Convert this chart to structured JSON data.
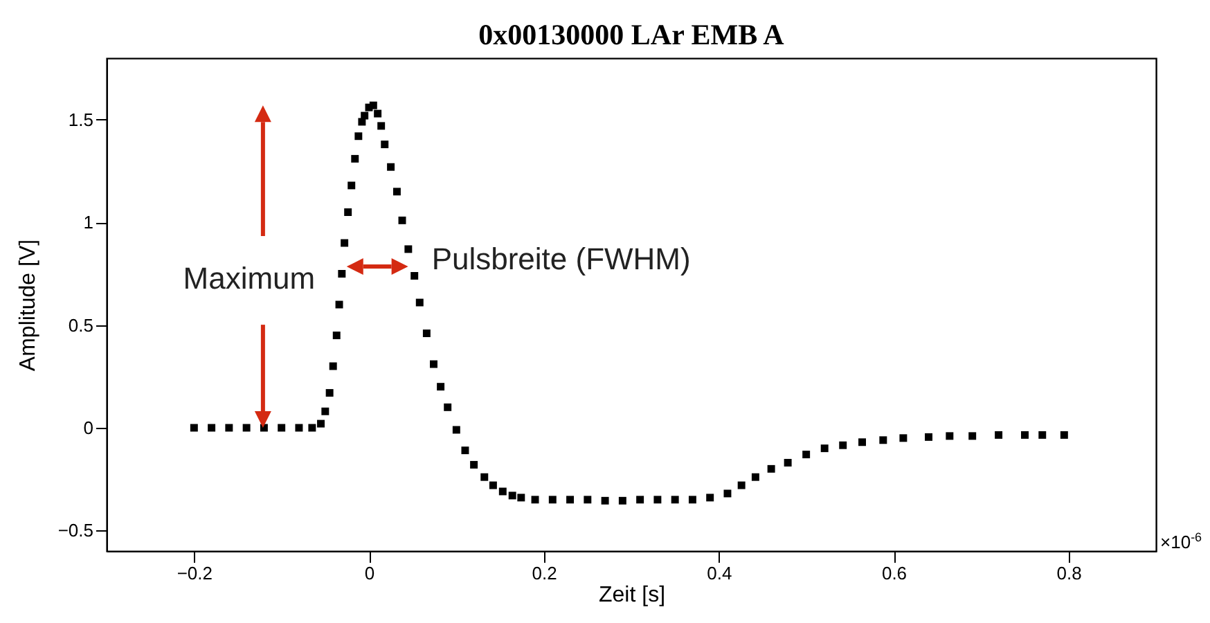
{
  "chart_data": {
    "type": "scatter",
    "title": "0x00130000 LAr EMB A",
    "xlabel": "Zeit [s]",
    "ylabel": "Amplitude [V]",
    "annotations": [
      "Maximum",
      "Pulsbreite (FWHM)",
      "×10$^{-6}$"
    ],
    "x": [
      -0.2,
      -0.18,
      -0.16,
      -0.14,
      -0.12,
      -0.1,
      -0.08,
      -0.065,
      -0.055,
      -0.05,
      -0.045,
      -0.041,
      -0.037,
      -0.034,
      -0.031,
      -0.028,
      -0.024,
      -0.02,
      -0.016,
      -0.012,
      -0.008,
      -0.005,
      0,
      0.005,
      0.01,
      0.014,
      0.018,
      0.025,
      0.032,
      0.038,
      0.045,
      0.052,
      0.058,
      0.066,
      0.074,
      0.082,
      0.09,
      0.1,
      0.11,
      0.12,
      0.132,
      0.142,
      0.153,
      0.164,
      0.174,
      0.19,
      0.21,
      0.23,
      0.25,
      0.27,
      0.29,
      0.31,
      0.33,
      0.35,
      0.37,
      0.39,
      0.41,
      0.426,
      0.442,
      0.46,
      0.479,
      0.5,
      0.521,
      0.542,
      0.564,
      0.588,
      0.611,
      0.64,
      0.664,
      0.69,
      0.72,
      0.75,
      0.77,
      0.795
    ],
    "series": [
      {
        "color": "#000000",
        "values": [
          0,
          0,
          0,
          0,
          0,
          0,
          0,
          0,
          0.02,
          0.08,
          0.17,
          0.3,
          0.45,
          0.6,
          0.75,
          0.9,
          1.05,
          1.18,
          1.31,
          1.42,
          1.49,
          1.52,
          1.56,
          1.57,
          1.53,
          1.47,
          1.38,
          1.27,
          1.15,
          1.01,
          0.87,
          0.74,
          0.61,
          0.46,
          0.31,
          0.2,
          0.1,
          -0.01,
          -0.11,
          -0.18,
          -0.24,
          -0.28,
          -0.31,
          -0.33,
          -0.34,
          -0.35,
          -0.35,
          -0.35,
          -0.35,
          -0.355,
          -0.355,
          -0.35,
          -0.35,
          -0.35,
          -0.35,
          -0.34,
          -0.32,
          -0.28,
          -0.24,
          -0.2,
          -0.17,
          -0.13,
          -0.1,
          -0.085,
          -0.07,
          -0.06,
          -0.05,
          -0.045,
          -0.04,
          -0.04,
          -0.035,
          -0.035,
          -0.035,
          -0.035
        ]
      }
    ],
    "marker": "square",
    "xlim": [
      -0.3,
      0.9
    ],
    "xticks": [
      -0.2,
      0,
      0.2,
      0.4,
      0.6,
      0.8
    ],
    "ylim": [
      -0.6,
      1.8
    ],
    "yticks": [
      -0.5,
      0,
      0.5,
      1,
      1.5
    ],
    "grid": false
  }
}
